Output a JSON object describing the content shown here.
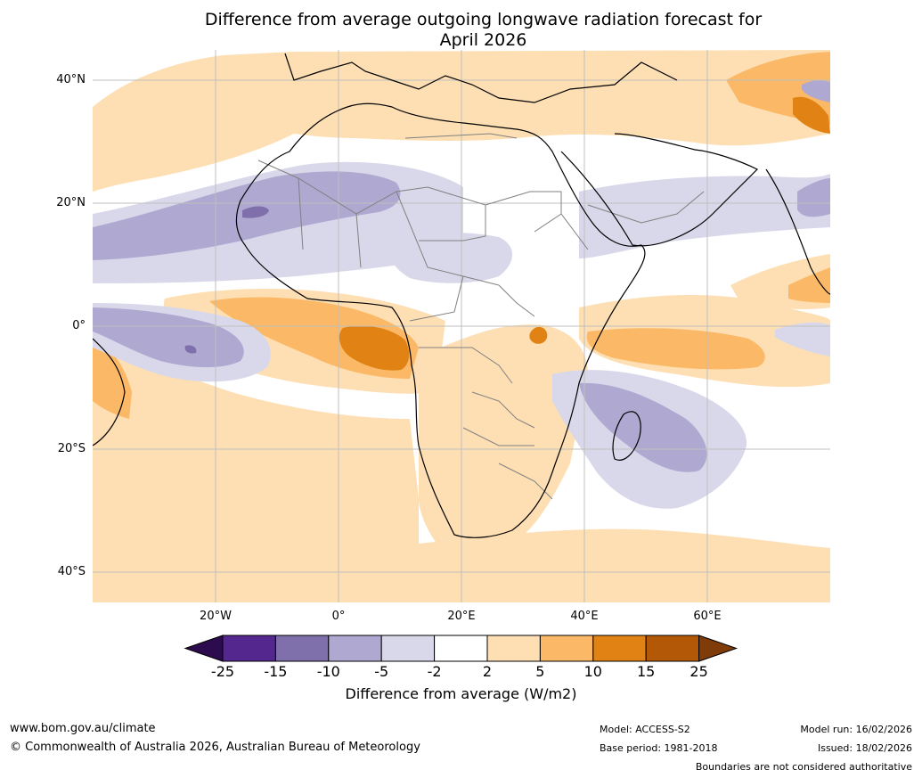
{
  "title": {
    "line1": "Difference from average outgoing longwave radiation forecast for",
    "line2": "April 2026"
  },
  "map": {
    "lat_labels": [
      "40°N",
      "20°N",
      "0°",
      "20°S",
      "40°S"
    ],
    "lon_labels": [
      "20°W",
      "0°",
      "20°E",
      "40°E",
      "60°E"
    ],
    "extent": {
      "lon": [
        -40,
        80
      ],
      "lat": [
        -45,
        45
      ]
    }
  },
  "colorbar": {
    "ticks": [
      "-25",
      "-15",
      "-10",
      "-5",
      "-2",
      "2",
      "5",
      "10",
      "15",
      "25"
    ],
    "colors": [
      "#2d0b4f",
      "#54278f",
      "#7f6faa",
      "#afa8d1",
      "#d8d8ea",
      "#ffffff",
      "#fddfb3",
      "#fbb866",
      "#e08214",
      "#b35806",
      "#7f3b08"
    ],
    "label": "Difference from average (W/m2)"
  },
  "footer": {
    "url": "www.bom.gov.au/climate",
    "copyright": "© Commonwealth of Australia 2026, Australian Bureau of Meteorology",
    "model": "Model: ACCESS-S2",
    "base_period": "Base period: 1981-2018",
    "model_run": "Model run: 16/02/2026",
    "issued": "Issued: 18/02/2026",
    "disclaimer": "Boundaries are not considered authoritative"
  }
}
